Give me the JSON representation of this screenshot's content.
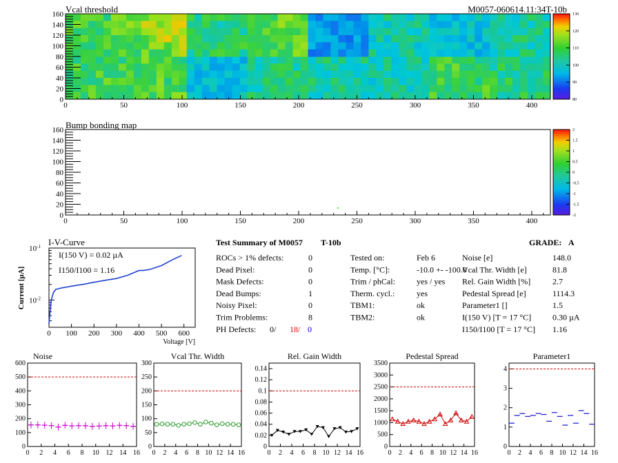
{
  "header": {
    "vcal_title": "Vcal threshold",
    "module_id": "M0057-060614.11:34T-10b",
    "bump_title": "Bump bonding map"
  },
  "colors": {
    "axis": "#000000",
    "iv_curve": "#1f3fd0",
    "noise": "#cc00cc",
    "vcal": "#2a9a2a",
    "gain": "#000000",
    "pedestal": "#cc0000",
    "parameter1": "#2222cc",
    "limit_line": "#cc0000"
  },
  "summary": {
    "title": "Test Summary of M0057",
    "subtitle": "T-10b",
    "grade_label": "GRADE:",
    "grade_value": "A",
    "left": [
      {
        "label": "ROCs > 1% defects:",
        "value": "0"
      },
      {
        "label": "Dead Pixel:",
        "value": "0"
      },
      {
        "label": "Mask Defects:",
        "value": "0"
      },
      {
        "label": "Dead Bumps:",
        "value": "1"
      },
      {
        "label": "Noisy Pixel:",
        "value": "0"
      },
      {
        "label": "Trim Problems:",
        "value": "8"
      }
    ],
    "ph_defects": {
      "label": "PH Defects:",
      "v1": "0/",
      "v2": "18/",
      "v3": "0"
    },
    "middle": [
      {
        "label": "Tested on:",
        "value": "Feb 6"
      },
      {
        "label": "Temp. [°C]:",
        "value": "-10.0 +- -100.0"
      },
      {
        "label": "Trim / phCal:",
        "value": "yes / yes"
      },
      {
        "label": "Therm. cycl.:",
        "value": "yes"
      },
      {
        "label": "TBM1:",
        "value": "ok"
      },
      {
        "label": "TBM2:",
        "value": "ok"
      }
    ],
    "right": [
      {
        "label": "Noise [e]",
        "value": "148.0"
      },
      {
        "label": "Vcal Thr. Width [e]",
        "value": "81.8"
      },
      {
        "label": "Rel. Gain Width [%]",
        "value": "2.7"
      },
      {
        "label": "Pedestal Spread [e]",
        "value": "1114.3"
      },
      {
        "label": "Parameter1 []",
        "value": "1.5"
      },
      {
        "label": "I(150 V)  [T = 17 °C]",
        "value": "0.30 µA"
      },
      {
        "label": "I150/I100  [T = 17 °C]",
        "value": "1.16"
      }
    ]
  },
  "chart_data": [
    {
      "type": "heatmap",
      "title": "Vcal threshold",
      "x_ticks": [
        "0",
        "50",
        "100",
        "150",
        "200",
        "250",
        "300",
        "350",
        "400"
      ],
      "y_ticks": [
        "0",
        "20",
        "40",
        "60",
        "80",
        "100",
        "120",
        "140",
        "160"
      ],
      "xlim": [
        0,
        416
      ],
      "ylim": [
        0,
        160
      ],
      "color_scale_ticks": [
        "80",
        "90",
        "100",
        "110",
        "120",
        "130"
      ],
      "roc_means": [
        [
          105,
          106,
          97,
          102,
          101,
          100,
          105,
          103
        ],
        [
          106,
          109,
          103,
          107,
          93,
          100,
          97,
          101
        ]
      ]
    },
    {
      "type": "heatmap",
      "title": "Bump bonding map",
      "x_ticks": [
        "0",
        "50",
        "100",
        "150",
        "200",
        "250",
        "300",
        "350",
        "400"
      ],
      "y_ticks": [
        "0",
        "20",
        "40",
        "60",
        "80",
        "100",
        "120",
        "140",
        "160"
      ],
      "xlim": [
        0,
        416
      ],
      "ylim": [
        0,
        160
      ],
      "color_scale_ticks": [
        "-2",
        "-1.5",
        "-1",
        "-0.5",
        "0",
        "0.5",
        "1",
        "1.5",
        "2"
      ],
      "points": [
        [
          233,
          14
        ]
      ]
    },
    {
      "type": "line",
      "title": "I-V-Curve",
      "xlabel": "Voltage [V]",
      "ylabel": "Current [µA]",
      "log_y": true,
      "xlim": [
        0,
        650
      ],
      "ylim": [
        0.003,
        0.1
      ],
      "annotation1": "I(150 V) = 0.02 µA",
      "annotation2": "I150/I100 = 1.16",
      "x_ticks": [
        "0",
        "100",
        "200",
        "300",
        "400",
        "500",
        "600"
      ],
      "y_tick_labels": [
        "10^-2",
        "10^-1"
      ],
      "x": [
        0,
        5,
        10,
        20,
        30,
        40,
        60,
        80,
        100,
        150,
        200,
        250,
        300,
        350,
        380,
        400,
        420,
        450,
        500,
        550,
        590
      ],
      "y": [
        0.0035,
        0.006,
        0.01,
        0.014,
        0.016,
        0.0165,
        0.0172,
        0.0178,
        0.0185,
        0.02,
        0.022,
        0.024,
        0.026,
        0.03,
        0.034,
        0.037,
        0.037,
        0.039,
        0.046,
        0.06,
        0.072
      ]
    },
    {
      "type": "scatter",
      "title": "Noise",
      "xlim": [
        0,
        16
      ],
      "ylim": [
        0,
        600
      ],
      "x_ticks": [
        "0",
        "2",
        "4",
        "6",
        "8",
        "10",
        "12",
        "14",
        "16"
      ],
      "y_ticks": [
        "0",
        "100",
        "200",
        "300",
        "400",
        "500",
        "600"
      ],
      "limit": 500,
      "x": [
        0,
        1,
        2,
        3,
        4,
        5,
        6,
        7,
        8,
        9,
        10,
        11,
        12,
        13,
        14,
        15
      ],
      "values": [
        155,
        155,
        153,
        150,
        140,
        152,
        148,
        150,
        149,
        145,
        147,
        150,
        148,
        152,
        150,
        145
      ]
    },
    {
      "type": "line",
      "title": "Vcal Thr. Width",
      "xlim": [
        0,
        16
      ],
      "ylim": [
        0,
        300
      ],
      "x_ticks": [
        "0",
        "2",
        "4",
        "6",
        "8",
        "10",
        "12",
        "14",
        "16"
      ],
      "y_ticks": [
        "0",
        "50",
        "100",
        "150",
        "200",
        "250",
        "300"
      ],
      "limit": 200,
      "x": [
        0,
        1,
        2,
        3,
        4,
        5,
        6,
        7,
        8,
        9,
        10,
        11,
        12,
        13,
        14,
        15
      ],
      "values": [
        80,
        81,
        80,
        80,
        76,
        80,
        82,
        86,
        80,
        88,
        84,
        78,
        82,
        80,
        80,
        78
      ]
    },
    {
      "type": "line",
      "title": "Rel. Gain Width",
      "xlim": [
        0,
        16
      ],
      "ylim": [
        0,
        0.15
      ],
      "x_ticks": [
        "0",
        "2",
        "4",
        "6",
        "8",
        "10",
        "12",
        "14",
        "16"
      ],
      "y_ticks": [
        "0",
        "0.02",
        "0.04",
        "0.06",
        "0.08",
        "0.1",
        "0.12",
        "0.14"
      ],
      "limit": 0.1,
      "x": [
        0,
        1,
        2,
        3,
        4,
        5,
        6,
        7,
        8,
        9,
        10,
        11,
        12,
        13,
        14,
        15
      ],
      "values": [
        0.02,
        0.029,
        0.026,
        0.022,
        0.027,
        0.027,
        0.03,
        0.022,
        0.036,
        0.034,
        0.018,
        0.032,
        0.034,
        0.026,
        0.027,
        0.032
      ]
    },
    {
      "type": "line",
      "title": "Pedestal Spread",
      "xlim": [
        0,
        16
      ],
      "ylim": [
        0,
        3500
      ],
      "x_ticks": [
        "0",
        "2",
        "4",
        "6",
        "8",
        "10",
        "12",
        "14",
        "16"
      ],
      "y_ticks": [
        "0",
        "500",
        "1000",
        "1500",
        "2000",
        "2500",
        "3000",
        "3500"
      ],
      "limit": 2500,
      "x": [
        0,
        1,
        2,
        3,
        4,
        5,
        6,
        7,
        8,
        9,
        10,
        11,
        12,
        13,
        14,
        15
      ],
      "values": [
        1150,
        1050,
        950,
        1050,
        1100,
        1050,
        950,
        1050,
        1150,
        1350,
        950,
        1100,
        1400,
        1100,
        1050,
        1250
      ]
    },
    {
      "type": "scatter",
      "title": "Parameter1",
      "xlim": [
        0,
        16
      ],
      "ylim": [
        0,
        4.3
      ],
      "x_ticks": [
        "0",
        "2",
        "4",
        "6",
        "8",
        "10",
        "12",
        "14",
        "16"
      ],
      "y_ticks": [
        "0",
        "1",
        "2",
        "3",
        "4"
      ],
      "limit": 4,
      "x": [
        0,
        1,
        2,
        3,
        4,
        5,
        6,
        7,
        8,
        9,
        10,
        11,
        12,
        13,
        14,
        15
      ],
      "values": [
        1.2,
        1.6,
        1.7,
        1.55,
        1.6,
        1.7,
        1.65,
        1.3,
        1.75,
        1.55,
        1.1,
        1.6,
        1.2,
        1.85,
        1.7,
        1.15
      ]
    }
  ]
}
